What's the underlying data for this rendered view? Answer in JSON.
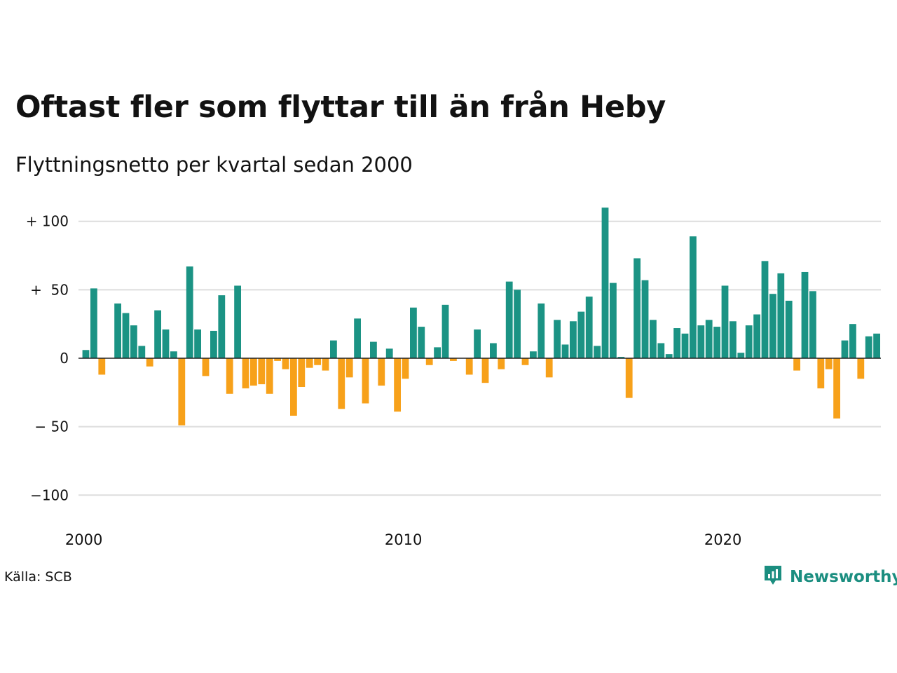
{
  "title": "Oftast fler som flyttar till än från Heby",
  "subtitle": "Flyttningsnetto per kvartal sedan 2000",
  "source": "Källa: SCB",
  "brand": {
    "name": "Newsworthy",
    "icon": "newsworthy-logo-icon"
  },
  "colors": {
    "positive": "#1b9384",
    "negative": "#f7a11a",
    "grid": "#dddddd",
    "zero": "#222222",
    "text": "#121212"
  },
  "chart_data": {
    "type": "bar",
    "x_unit": "quarter",
    "x_start": "2000 Q1",
    "y_ticks": [
      {
        "value": 100,
        "label": "+ 100"
      },
      {
        "value": 50,
        "label": "+  50"
      },
      {
        "value": 0,
        "label": "0"
      },
      {
        "value": -50,
        "label": "− 50"
      },
      {
        "value": -100,
        "label": "−100"
      }
    ],
    "x_ticks": [
      {
        "year": 2000,
        "label": "2000"
      },
      {
        "year": 2010,
        "label": "2010"
      },
      {
        "year": 2020,
        "label": "2020"
      }
    ],
    "ylim": [
      -100,
      100
    ],
    "grid": true,
    "legend": "none",
    "values": [
      6,
      51,
      -12,
      0,
      40,
      33,
      24,
      9,
      -6,
      35,
      21,
      5,
      -49,
      67,
      21,
      -13,
      20,
      46,
      -26,
      53,
      -22,
      -20,
      -19,
      -26,
      -2,
      -8,
      -42,
      -21,
      -7,
      -5,
      -9,
      13,
      -37,
      -14,
      29,
      -33,
      12,
      -20,
      7,
      -39,
      -15,
      37,
      23,
      -5,
      8,
      39,
      -2,
      0,
      -12,
      21,
      -18,
      11,
      -8,
      56,
      50,
      -5,
      5,
      40,
      -14,
      28,
      10,
      27,
      34,
      45,
      9,
      110,
      55,
      1,
      -29,
      73,
      57,
      28,
      11,
      3,
      22,
      18,
      89,
      24,
      28,
      23,
      53,
      27,
      4,
      24,
      32,
      71,
      47,
      62,
      42,
      -9,
      63,
      49,
      -22,
      -8,
      -44,
      13,
      25,
      -15,
      16,
      18
    ]
  }
}
